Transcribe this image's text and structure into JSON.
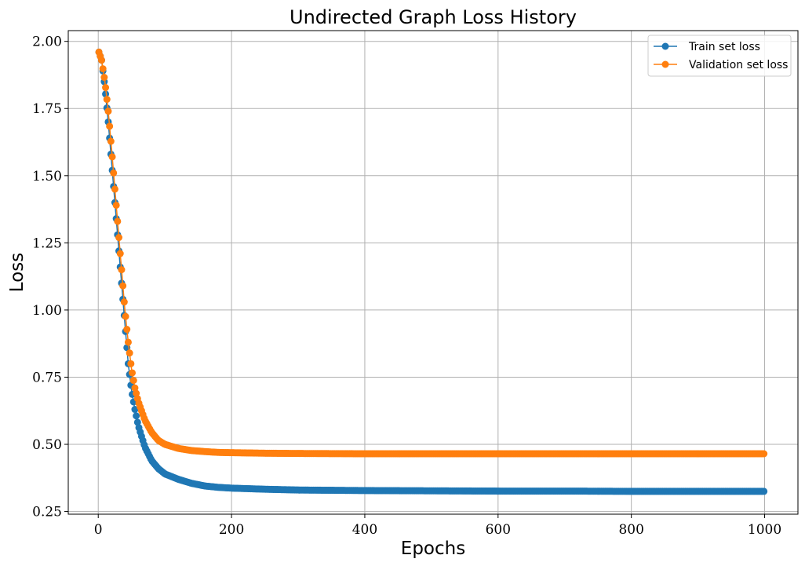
{
  "chart_data": {
    "type": "line",
    "title": "Undirected Graph Loss History",
    "xlabel": "Epochs",
    "ylabel": "Loss",
    "xlim": [
      -45,
      1050
    ],
    "ylim": [
      0.24,
      2.04
    ],
    "xticks": [
      0,
      200,
      400,
      600,
      800,
      1000
    ],
    "yticks": [
      0.25,
      0.5,
      0.75,
      1.0,
      1.25,
      1.5,
      1.75,
      2.0
    ],
    "xtick_labels": [
      "0",
      "200",
      "400",
      "600",
      "800",
      "1000"
    ],
    "ytick_labels": [
      "0.25",
      "0.50",
      "0.75",
      "1.00",
      "1.25",
      "1.50",
      "1.75",
      "2.00"
    ],
    "grid": true,
    "legend_position": "top-right",
    "x": [
      1,
      5,
      10,
      15,
      20,
      25,
      30,
      35,
      40,
      45,
      50,
      55,
      60,
      70,
      80,
      90,
      100,
      120,
      140,
      160,
      180,
      200,
      250,
      300,
      400,
      500,
      600,
      700,
      800,
      900,
      1000
    ],
    "series": [
      {
        "name": "Train set loss",
        "color": "#1f77b4",
        "values": [
          1.96,
          1.93,
          1.83,
          1.7,
          1.55,
          1.4,
          1.25,
          1.1,
          0.95,
          0.8,
          0.7,
          0.63,
          0.57,
          0.49,
          0.44,
          0.41,
          0.39,
          0.37,
          0.355,
          0.345,
          0.34,
          0.337,
          0.333,
          0.33,
          0.328,
          0.327,
          0.326,
          0.326,
          0.325,
          0.325,
          0.325
        ]
      },
      {
        "name": "Validation set loss",
        "color": "#ff7f0e",
        "values": [
          1.96,
          1.93,
          1.85,
          1.74,
          1.6,
          1.45,
          1.3,
          1.15,
          1.0,
          0.88,
          0.78,
          0.71,
          0.66,
          0.59,
          0.545,
          0.515,
          0.5,
          0.485,
          0.477,
          0.473,
          0.47,
          0.469,
          0.467,
          0.466,
          0.465,
          0.465,
          0.465,
          0.465,
          0.465,
          0.465,
          0.465
        ]
      }
    ]
  }
}
